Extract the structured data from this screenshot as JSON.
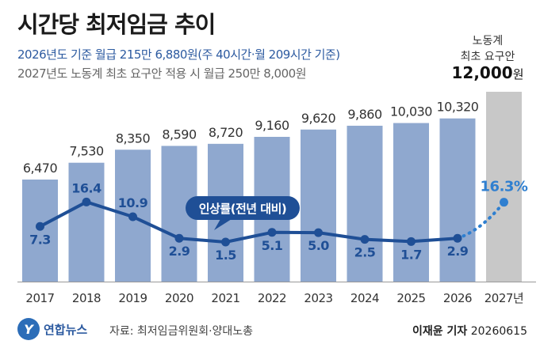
{
  "header": {
    "title": "시간당 최저임금 추이",
    "subtitle_1": "2026년도 기준 월급 215만 6,880원(주 40시간·월 209시간 기준)",
    "subtitle_2": "2027년도 노동계 최초 요구안 적용 시 월급 250만 8,000원"
  },
  "demand_box": {
    "line1": "노동계",
    "line2": "최초 요구안",
    "value": "12,000",
    "unit": "원"
  },
  "footer": {
    "logo_glyph": "Y",
    "logo_text": "연합뉴스",
    "source": "자료: 최저임금위원회·양대노총",
    "reporter": "이재윤 기자",
    "date": "20260615"
  },
  "chart_data": {
    "type": "bar+line",
    "categories": [
      "2017",
      "2018",
      "2019",
      "2020",
      "2021",
      "2022",
      "2023",
      "2024",
      "2025",
      "2026",
      "2027년"
    ],
    "bar_series": {
      "values": [
        6470,
        7530,
        8350,
        8590,
        8720,
        9160,
        9620,
        9860,
        10030,
        10320,
        12000
      ],
      "labels": [
        "6,470",
        "7,530",
        "8,350",
        "8,590",
        "8,720",
        "9,160",
        "9,620",
        "9,860",
        "10,030",
        "10,320",
        ""
      ],
      "color": "#8fa8cf",
      "highlight_color": "#c8c8c8"
    },
    "line_series": {
      "name": "인상률(전년 대비)",
      "values": [
        7.3,
        16.4,
        10.9,
        2.9,
        1.5,
        5.1,
        5.0,
        2.5,
        1.7,
        2.9,
        16.3
      ],
      "labels": [
        "7.3",
        "16.4",
        "10.9",
        "2.9",
        "1.5",
        "5.1",
        "5.0",
        "2.5",
        "1.7",
        "2.9",
        "16.3%"
      ],
      "color": "#1f4f96",
      "projected_color": "#2f7fd0"
    },
    "ylim": [
      0,
      12000
    ]
  }
}
